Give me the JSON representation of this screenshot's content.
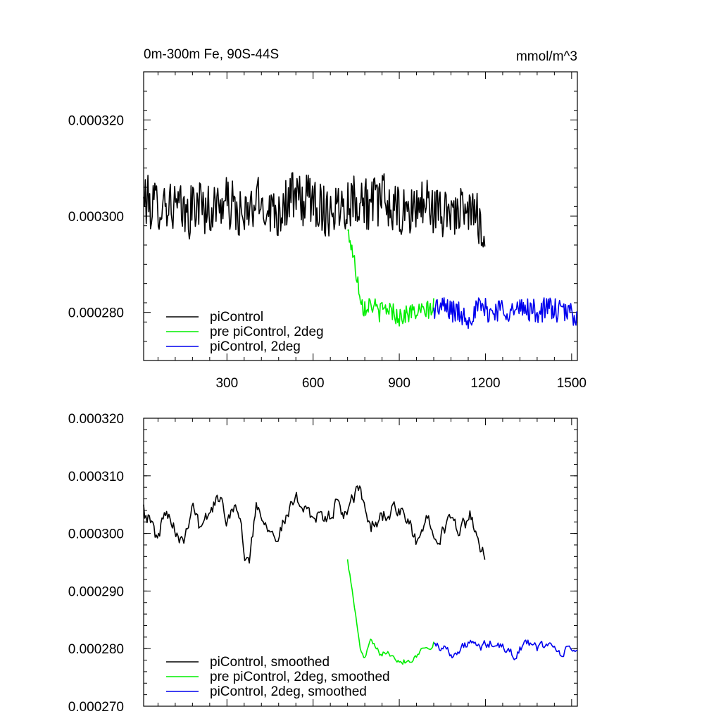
{
  "top_title_left": "0m-300m Fe, 90S-44S",
  "top_title_right": "mmol/m^3",
  "chart_data": [
    {
      "type": "line",
      "title": "0m-300m Fe, 90S-44S",
      "units": "mmol/m^3",
      "xlim": [
        10,
        1520
      ],
      "ylim": [
        0.00027,
        0.00033
      ],
      "x_ticks": [
        300,
        600,
        900,
        1200,
        1500
      ],
      "x_tick_labels": [
        "300",
        "600",
        "900",
        "1200",
        "1500"
      ],
      "y_ticks": [
        0.00028,
        0.0003,
        0.00032
      ],
      "y_tick_labels": [
        "0.000280",
        "0.000300",
        "0.000320"
      ],
      "legend_position": "bottom-left",
      "series": [
        {
          "name": "piControl",
          "color": "#000000",
          "anchors": [
            [
              10,
              0.000304
            ],
            [
              40,
              0.000302
            ],
            [
              80,
              0.000303
            ],
            [
              120,
              0.000302
            ],
            [
              160,
              0.0003
            ],
            [
              200,
              0.000303
            ],
            [
              240,
              0.000301
            ],
            [
              280,
              0.000303
            ],
            [
              320,
              0.000302
            ],
            [
              360,
              0.000299
            ],
            [
              400,
              0.000303
            ],
            [
              440,
              0.000302
            ],
            [
              480,
              0.000301
            ],
            [
              520,
              0.000304
            ],
            [
              560,
              0.000303
            ],
            [
              600,
              0.000304
            ],
            [
              640,
              0.000301
            ],
            [
              680,
              0.000302
            ],
            [
              720,
              0.000303
            ],
            [
              760,
              0.000304
            ],
            [
              800,
              0.000302
            ],
            [
              840,
              0.000304
            ],
            [
              880,
              0.000301
            ],
            [
              920,
              0.0003
            ],
            [
              960,
              0.000302
            ],
            [
              1000,
              0.000303
            ],
            [
              1040,
              0.0003
            ],
            [
              1080,
              0.000302
            ],
            [
              1120,
              0.0003
            ],
            [
              1160,
              0.000301
            ],
            [
              1200,
              0.000297
            ]
          ],
          "noise": 5.5e-06,
          "x_end": 1200
        },
        {
          "name": "pre piControl, 2deg",
          "color": "#00ee00",
          "anchors": [
            [
              720,
              0.000297
            ],
            [
              730,
              0.000295
            ],
            [
              745,
              0.00029
            ],
            [
              760,
              0.000285
            ],
            [
              775,
              0.000281
            ],
            [
              800,
              0.000282
            ],
            [
              830,
              0.00028
            ],
            [
              860,
              0.000281
            ],
            [
              900,
              0.000279
            ],
            [
              940,
              0.00028
            ],
            [
              980,
              0.00028
            ],
            [
              1020,
              0.000281
            ]
          ],
          "noise": 2e-06,
          "x_end": 1020
        },
        {
          "name": "piControl, 2deg",
          "color": "#0000ee",
          "anchors": [
            [
              1020,
              0.000281
            ],
            [
              1060,
              0.000281
            ],
            [
              1100,
              0.00028
            ],
            [
              1140,
              0.000279
            ],
            [
              1180,
              0.000281
            ],
            [
              1220,
              0.00028
            ],
            [
              1260,
              0.000281
            ],
            [
              1300,
              0.00028
            ],
            [
              1340,
              0.000281
            ],
            [
              1380,
              0.00028
            ],
            [
              1420,
              0.000281
            ],
            [
              1460,
              0.00028
            ],
            [
              1500,
              0.00028
            ],
            [
              1520,
              0.000279
            ]
          ],
          "noise": 2.5e-06,
          "x_end": 1520
        }
      ]
    },
    {
      "type": "line",
      "xlim": [
        10,
        1520
      ],
      "ylim": [
        0.00027,
        0.00032
      ],
      "x_ticks": [
        300,
        600,
        900,
        1200,
        1500
      ],
      "y_ticks": [
        0.00027,
        0.00028,
        0.00029,
        0.0003,
        0.00031,
        0.00032
      ],
      "y_tick_labels": [
        "0.000270",
        "0.000280",
        "0.000290",
        "0.000300",
        "0.000310",
        "0.000320"
      ],
      "legend_position": "bottom-left",
      "series": [
        {
          "name": "piControl, smoothed",
          "color": "#000000",
          "anchors": [
            [
              10,
              0.000305
            ],
            [
              40,
              0.000301
            ],
            [
              60,
              0.000299
            ],
            [
              90,
              0.000305
            ],
            [
              120,
              0.000301
            ],
            [
              150,
              0.000299
            ],
            [
              180,
              0.000306
            ],
            [
              210,
              0.0003
            ],
            [
              240,
              0.000304
            ],
            [
              270,
              0.000306
            ],
            [
              300,
              0.000303
            ],
            [
              330,
              0.000306
            ],
            [
              360,
              0.000297
            ],
            [
              380,
              0.000295
            ],
            [
              400,
              0.000305
            ],
            [
              440,
              0.000302
            ],
            [
              480,
              0.0003
            ],
            [
              520,
              0.000304
            ],
            [
              560,
              0.000306
            ],
            [
              600,
              0.000303
            ],
            [
              640,
              0.000302
            ],
            [
              680,
              0.000305
            ],
            [
              720,
              0.000303
            ],
            [
              760,
              0.000308
            ],
            [
              800,
              0.000301
            ],
            [
              840,
              0.000303
            ],
            [
              880,
              0.000304
            ],
            [
              920,
              0.000303
            ],
            [
              960,
              0.000298
            ],
            [
              1000,
              0.000303
            ],
            [
              1040,
              0.0003
            ],
            [
              1080,
              0.000302
            ],
            [
              1120,
              0.000301
            ],
            [
              1150,
              0.000303
            ],
            [
              1180,
              0.000296
            ],
            [
              1200,
              0.000296
            ]
          ],
          "noise": 2.8e-06,
          "x_end": 1200
        },
        {
          "name": "pre piControl, 2deg, smoothed",
          "color": "#00ee00",
          "anchors": [
            [
              720,
              0.0002955
            ],
            [
              730,
              0.000292
            ],
            [
              745,
              0.000287
            ],
            [
              760,
              0.000281
            ],
            [
              775,
              0.000278
            ],
            [
              800,
              0.000281
            ],
            [
              830,
              0.000279
            ],
            [
              860,
              0.00028
            ],
            [
              900,
              0.000278
            ],
            [
              940,
              0.000278
            ],
            [
              980,
              0.00028
            ],
            [
              1020,
              0.000281
            ]
          ],
          "noise": 1.2e-06,
          "x_end": 1020
        },
        {
          "name": "piControl, 2deg, smoothed",
          "color": "#0000ee",
          "anchors": [
            [
              1020,
              0.000281
            ],
            [
              1060,
              0.00028
            ],
            [
              1100,
              0.000279
            ],
            [
              1140,
              0.000281
            ],
            [
              1180,
              0.00028
            ],
            [
              1220,
              0.000281
            ],
            [
              1260,
              0.00028
            ],
            [
              1300,
              0.000279
            ],
            [
              1340,
              0.000281
            ],
            [
              1380,
              0.00028
            ],
            [
              1420,
              0.000281
            ],
            [
              1460,
              0.000279
            ],
            [
              1500,
              0.00028
            ],
            [
              1520,
              0.00028
            ]
          ],
          "noise": 1.6e-06,
          "x_end": 1520
        }
      ]
    }
  ]
}
